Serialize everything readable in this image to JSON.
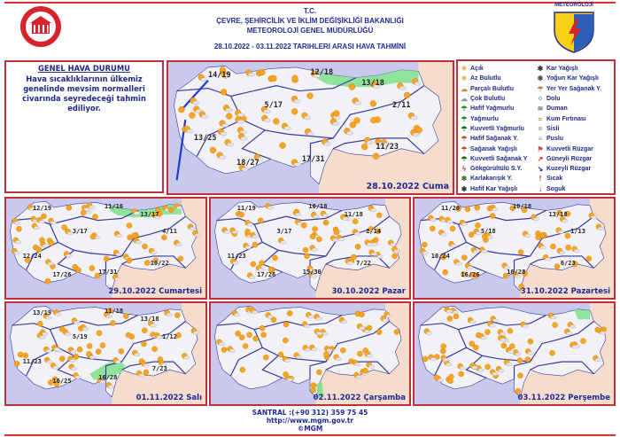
{
  "header": {
    "line1": "T.C.",
    "line2": "ÇEVRE, ŞEHİRCİLİK VE İKLİM DEĞİŞİKLİĞİ BAKANLIĞI",
    "line3": "METEOROLOJİ GENEL MÜDÜRLÜĞÜ",
    "line4": "28.10.2022 - 03.11.2022 TARIHLERI ARASI HAVA TAHMİNİ",
    "logo_right_text": "METEOROLOJİ"
  },
  "general": {
    "title": "GENEL HAVA DURUMU",
    "text": "Hava sıcaklıklarının ülkemiz genelinde mevsim normalleri civarında seyredeceği tahmin ediliyor."
  },
  "legend": [
    {
      "label": "Açık",
      "icon": "sun-icon"
    },
    {
      "label": "Az Bulutlu",
      "icon": "sun-small-cloud-icon"
    },
    {
      "label": "Parçalı Bulutlu",
      "icon": "partly-cloudy-icon"
    },
    {
      "label": "Çok Bulutlu",
      "icon": "cloudy-icon"
    },
    {
      "label": "Hafif Yağmurlu",
      "icon": "light-rain-icon"
    },
    {
      "label": "Yağmurlu",
      "icon": "rain-icon"
    },
    {
      "label": "Kuvvetli Yağmurlu",
      "icon": "heavy-rain-icon"
    },
    {
      "label": "Hafif Sağanak Y.",
      "icon": "light-shower-icon"
    },
    {
      "label": "Sağanak Yağışlı",
      "icon": "shower-icon"
    },
    {
      "label": "Kuvvetli Sağanak Y",
      "icon": "heavy-shower-icon"
    },
    {
      "label": "Gökgürültülü S.Y.",
      "icon": "thunderstorm-icon"
    },
    {
      "label": "Karlakarışık Y.",
      "icon": "sleet-icon"
    },
    {
      "label": "Hafif Kar Yağışlı",
      "icon": "light-snow-icon"
    },
    {
      "label": "Kar Yağışlı",
      "icon": "snow-icon"
    },
    {
      "label": "Yoğun Kar Yağışlı",
      "icon": "heavy-snow-icon"
    },
    {
      "label": "Yer Yer Sağanak Y.",
      "icon": "scattered-shower-icon"
    },
    {
      "label": "Dolu",
      "icon": "hail-icon"
    },
    {
      "label": "Duman",
      "icon": "smoke-icon"
    },
    {
      "label": "Kum Fırtınası",
      "icon": "sandstorm-icon"
    },
    {
      "label": "Sisli",
      "icon": "fog-icon"
    },
    {
      "label": "Puslu",
      "icon": "haze-icon"
    },
    {
      "label": "Kuvvetli Rüzgar",
      "icon": "strong-wind-icon"
    },
    {
      "label": "Güneyli Rüzgar",
      "icon": "south-wind-arrow-icon"
    },
    {
      "label": "Kuzeyli Rüzgar",
      "icon": "north-wind-arrow-icon"
    },
    {
      "label": "Sıcak",
      "icon": "hot-thermometer-icon"
    },
    {
      "label": "Soguk",
      "icon": "cold-thermometer-icon"
    }
  ],
  "maps": [
    {
      "date": "28.10.2022 Cuma",
      "temps": [
        "14/19",
        "12/18",
        "13/18",
        "5/17",
        "2/11",
        "13/25",
        "18/27",
        "17/31",
        "11/23"
      ],
      "rain_band": "black-sea"
    },
    {
      "date": "29.10.2022 Cumartesi",
      "temps": [
        "12/19",
        "11/16",
        "13/17",
        "3/17",
        "4/11",
        "12/24",
        "17/26",
        "17/31",
        "10/22"
      ],
      "rain_band": "black-sea"
    },
    {
      "date": "30.10.2022 Pazar",
      "temps": [
        "11/19",
        "10/18",
        "11/18",
        "3/17",
        "2/14",
        "11/23",
        "17/26",
        "15/30",
        "7/22"
      ],
      "rain_band": "none"
    },
    {
      "date": "31.10.2022 Pazartesi",
      "temps": [
        "11/20",
        "10/18",
        "13/18",
        "5/18",
        "1/13",
        "10/24",
        "16/26",
        "16/28",
        "6/23"
      ],
      "rain_band": "none"
    },
    {
      "date": "01.11.2022 Salı",
      "temps": [
        "13/19",
        "11/18",
        "13/18",
        "5/19",
        "1/12",
        "11/23",
        "16/25",
        "16/28",
        "7/23"
      ],
      "rain_band": "adana"
    },
    {
      "date": "02.11.2022 Çarşamba",
      "temps": [],
      "rain_band": "hatay"
    },
    {
      "date": "03.11.2022 Perşembe",
      "temps": [],
      "rain_band": "rize"
    }
  ],
  "colors": {
    "frame": "#c0303a",
    "text": "#1f2a9a",
    "sea": "#c9c9ee",
    "land": "#f2f2f6",
    "rain": "#7ee08a",
    "sun": "#f5a623"
  },
  "footer": {
    "phone": "SANTRAL :(+90 312) 359 75 45",
    "url": "http://www.mgm.gov.tr",
    "copyright": "©MGM"
  }
}
